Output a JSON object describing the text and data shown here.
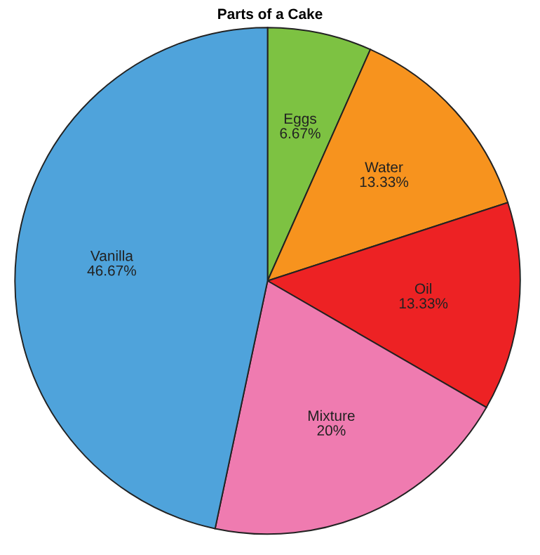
{
  "chart_data": {
    "type": "pie",
    "title": "Parts of a Cake",
    "categories": [
      "Eggs",
      "Water",
      "Oil",
      "Mixture",
      "Vanilla"
    ],
    "values": [
      6.67,
      13.33,
      13.33,
      20,
      46.67
    ],
    "value_labels": [
      "6.67%",
      "13.33%",
      "13.33%",
      "20%",
      "46.67%"
    ],
    "colors": [
      "#7dc242",
      "#f7931e",
      "#ed2224",
      "#ef7bb0",
      "#4fa3db"
    ],
    "legend": false
  }
}
